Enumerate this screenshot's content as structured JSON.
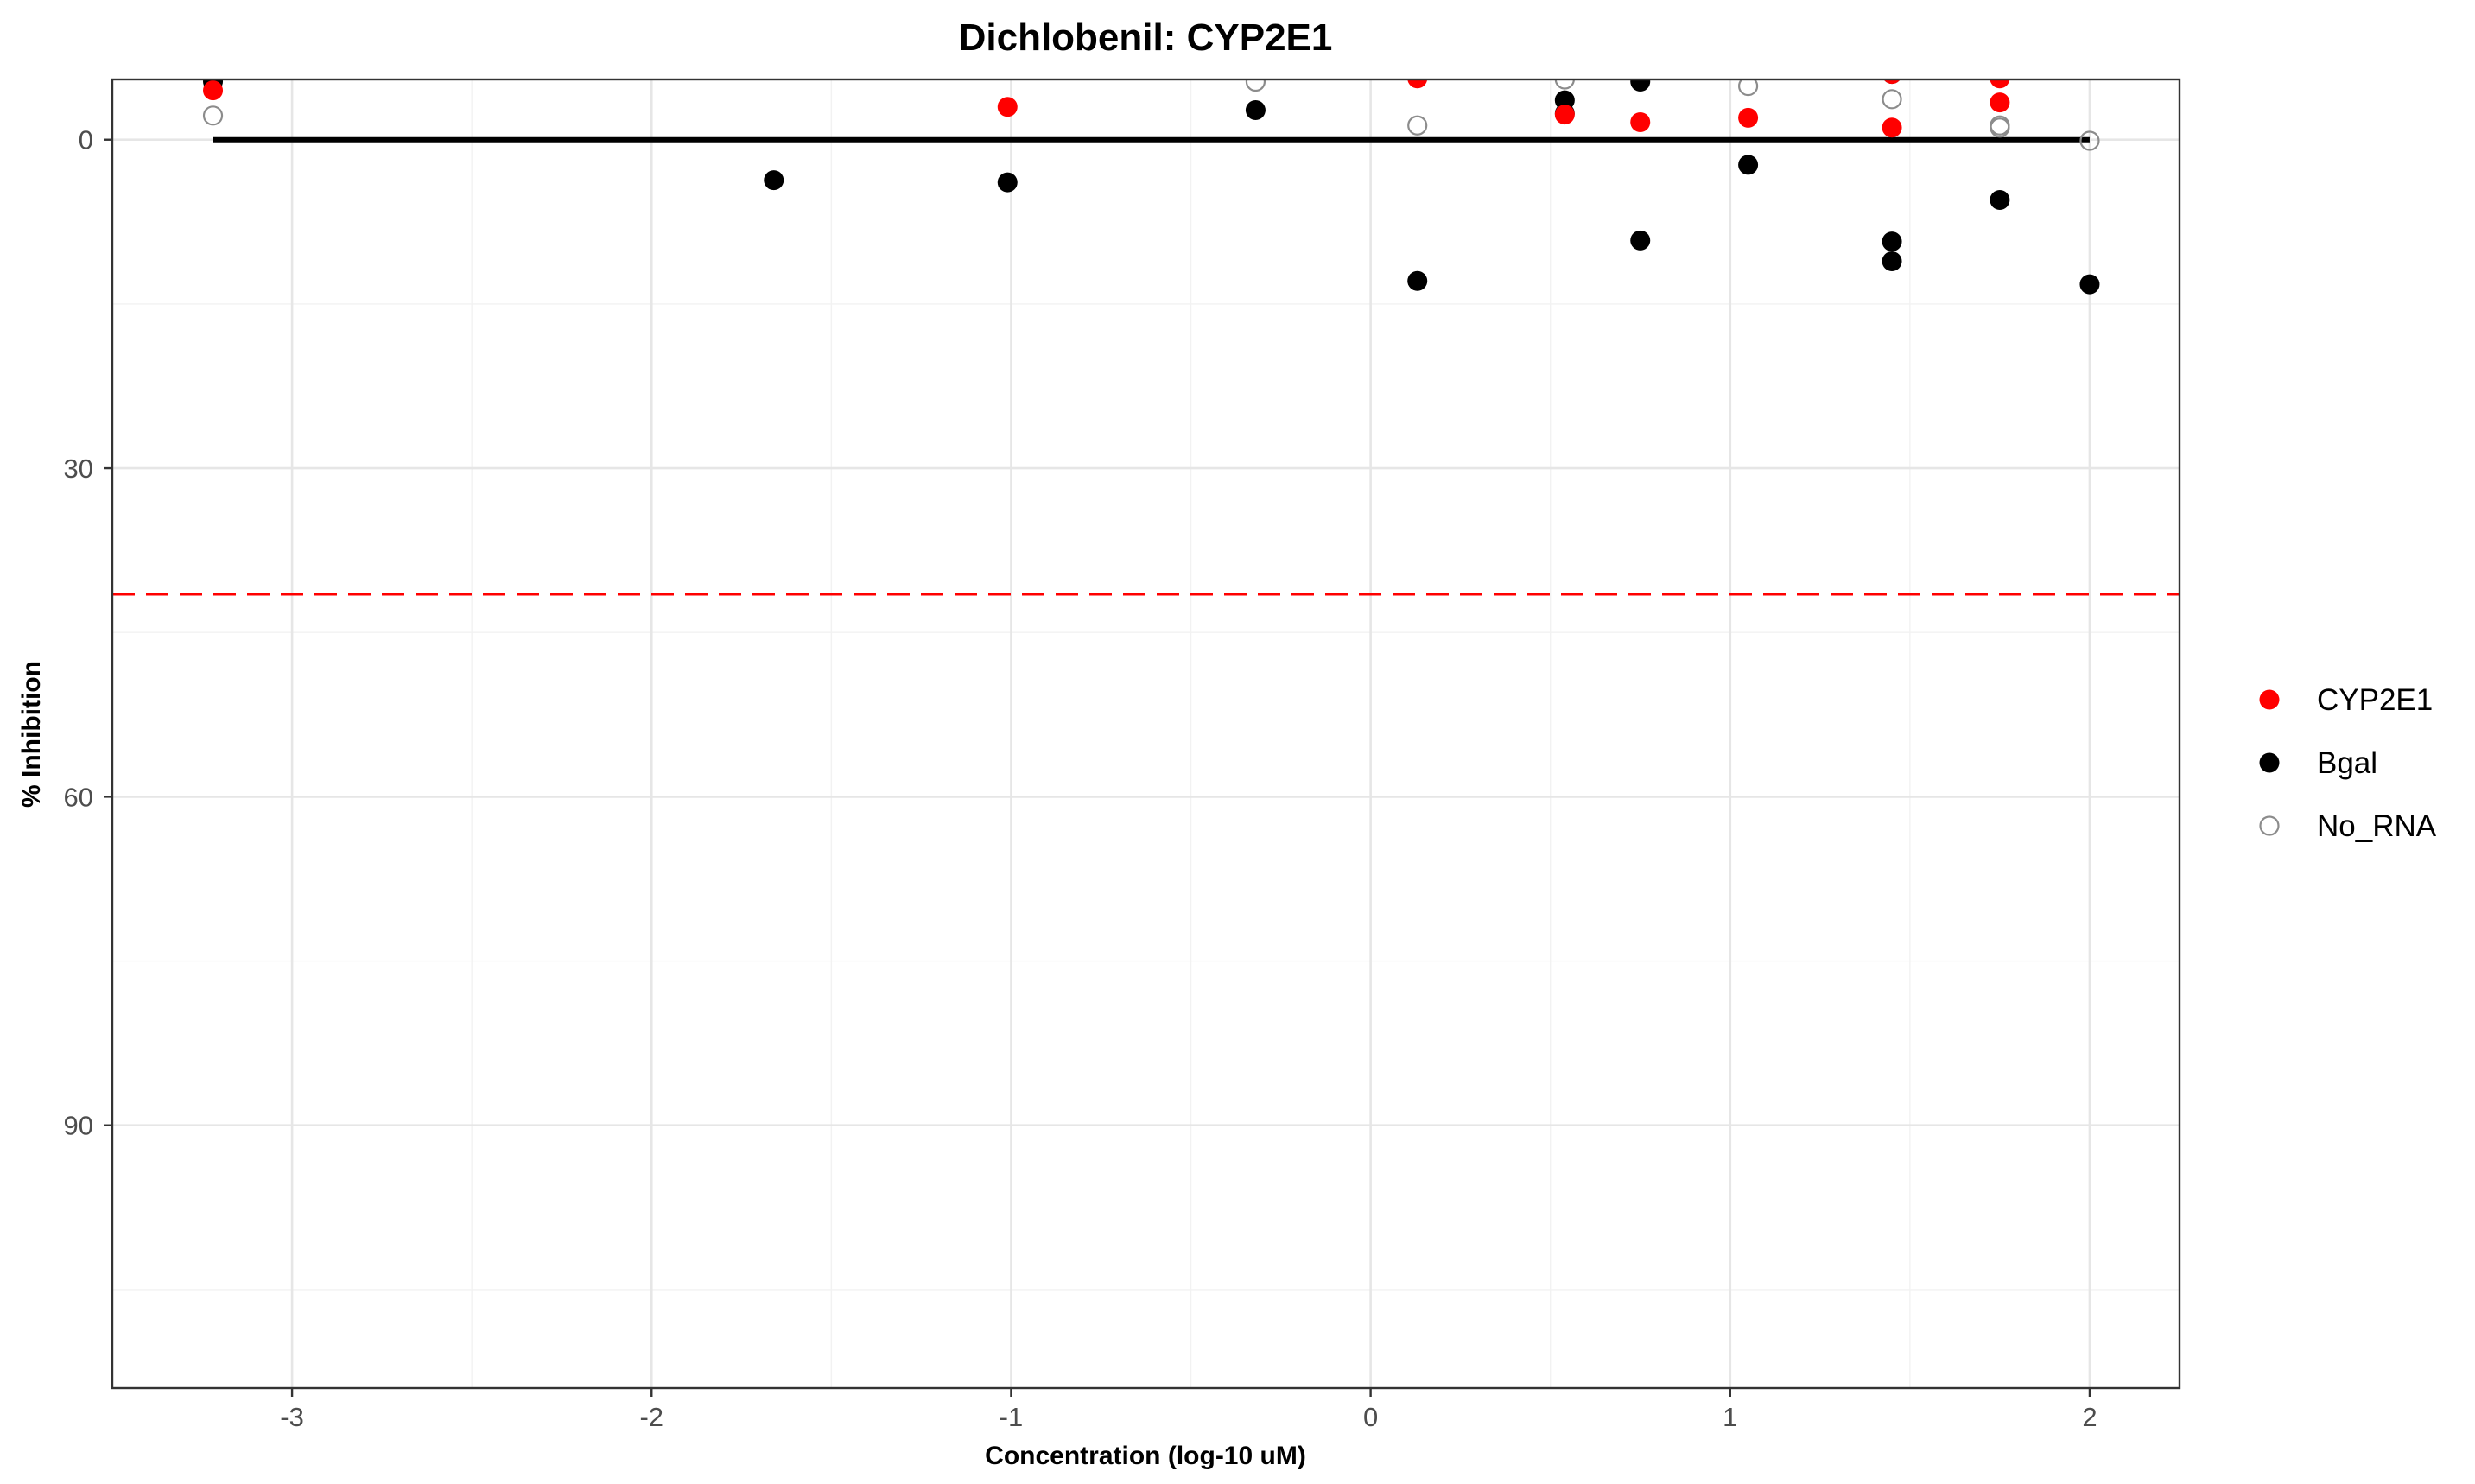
{
  "chart_data": {
    "type": "scatter",
    "title": "Dichlobenil: CYP2E1",
    "xlabel": "Concentration (log-10 uM)",
    "ylabel": "% Inhibition",
    "xlim": [
      -3.5,
      2.25
    ],
    "ylim": [
      114,
      -5.5
    ],
    "y_reversed": true,
    "x_ticks": [
      -3,
      -2,
      -1,
      0,
      1,
      2
    ],
    "y_ticks": [
      0,
      30,
      60,
      90
    ],
    "grid": true,
    "legend_position": "right",
    "series": [
      {
        "name": "CYP2E1",
        "marker": "filled-circle",
        "color": "#ff0000",
        "points": [
          {
            "x": -3.22,
            "y": -4.5
          },
          {
            "x": -1.01,
            "y": -3.0
          },
          {
            "x": 0.13,
            "y": -5.6
          },
          {
            "x": 0.54,
            "y": -2.3
          },
          {
            "x": 0.75,
            "y": -1.6
          },
          {
            "x": 1.05,
            "y": -2.0
          },
          {
            "x": 1.45,
            "y": -6.0
          },
          {
            "x": 1.45,
            "y": -1.1
          },
          {
            "x": 1.75,
            "y": -5.6
          },
          {
            "x": 1.75,
            "y": -3.4
          }
        ]
      },
      {
        "name": "Bgal",
        "marker": "filled-circle",
        "color": "#000000",
        "points": [
          {
            "x": -3.22,
            "y": -5.3
          },
          {
            "x": -1.66,
            "y": 3.7
          },
          {
            "x": -1.01,
            "y": 3.9
          },
          {
            "x": -0.32,
            "y": -2.7
          },
          {
            "x": 0.13,
            "y": 12.9
          },
          {
            "x": 0.54,
            "y": -3.6
          },
          {
            "x": 0.54,
            "y": -2.4
          },
          {
            "x": 0.75,
            "y": -5.3
          },
          {
            "x": 0.75,
            "y": 9.2
          },
          {
            "x": 1.05,
            "y": 2.3
          },
          {
            "x": 1.45,
            "y": -6.0
          },
          {
            "x": 1.45,
            "y": 9.3
          },
          {
            "x": 1.45,
            "y": 11.1
          },
          {
            "x": 1.75,
            "y": 5.5
          },
          {
            "x": 2.0,
            "y": 13.2
          }
        ]
      },
      {
        "name": "No_RNA",
        "marker": "open-circle",
        "color": "#8c8c8c",
        "points": [
          {
            "x": -3.22,
            "y": -2.2
          },
          {
            "x": -0.32,
            "y": -5.3
          },
          {
            "x": 0.13,
            "y": -1.3
          },
          {
            "x": 0.54,
            "y": -5.5
          },
          {
            "x": 1.05,
            "y": -4.9
          },
          {
            "x": 1.45,
            "y": -3.7
          },
          {
            "x": 1.75,
            "y": -1.3
          },
          {
            "x": 1.75,
            "y": -1.1
          },
          {
            "x": 2.0,
            "y": 0.1
          }
        ]
      }
    ],
    "reference_lines": [
      {
        "kind": "fit",
        "color": "#000000",
        "style": "solid",
        "x": [
          -3.22,
          2.0
        ],
        "y": [
          0,
          0
        ]
      },
      {
        "kind": "threshold",
        "color": "#ff0000",
        "style": "dashed",
        "y": 41.5
      }
    ]
  }
}
